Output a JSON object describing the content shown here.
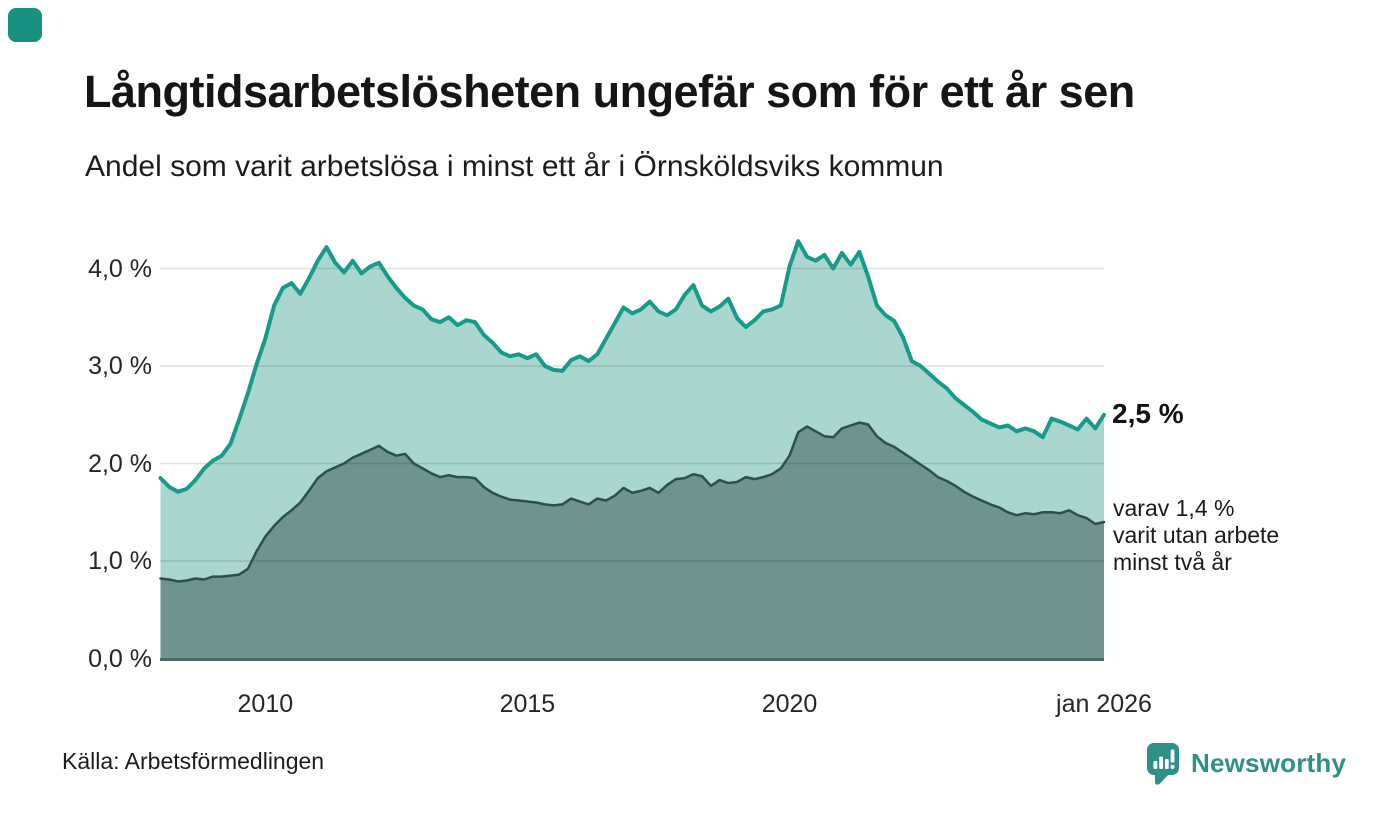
{
  "header": {
    "title": "Långtidsarbetslösheten ungefär som för ett år sen",
    "subtitle": "Andel som varit arbetslösa i minst ett år i Örnsköldsviks kommun"
  },
  "branding": {
    "corner_color": "#189181",
    "logo_text": "Newsworthy",
    "logo_color": "#2f9088"
  },
  "footer": {
    "source": "Källa: Arbetsförmedlingen"
  },
  "chart_data": {
    "type": "area",
    "title": "Långtidsarbetslösheten ungefär som för ett år sen",
    "subtitle": "Andel som varit arbetslösa i minst ett år i Örnsköldsviks kommun",
    "unit": "%",
    "x_start": "2008-01",
    "x_step_months": 2,
    "x_end": "2026-01",
    "grid": true,
    "ylim": [
      0,
      4.4
    ],
    "y_ticks": [
      {
        "label": "0,0 %",
        "value": 0
      },
      {
        "label": "1,0 %",
        "value": 1
      },
      {
        "label": "2,0 %",
        "value": 2
      },
      {
        "label": "3,0 %",
        "value": 3
      },
      {
        "label": "4,0 %",
        "value": 4
      }
    ],
    "x_ticks": [
      {
        "label": "2010",
        "index": 12
      },
      {
        "label": "2015",
        "index": 42
      },
      {
        "label": "2020",
        "index": 72
      },
      {
        "label": "jan 2026",
        "index": 108
      }
    ],
    "series": [
      {
        "name": "Andel arbetslösa minst ett år",
        "line_color": "#189a8b",
        "fill_color": "#a9d6cf",
        "line_width": 4,
        "values": [
          1.85,
          1.76,
          1.71,
          1.74,
          1.83,
          1.95,
          2.03,
          2.08,
          2.2,
          2.45,
          2.72,
          3.02,
          3.28,
          3.62,
          3.8,
          3.85,
          3.74,
          3.9,
          4.08,
          4.22,
          4.06,
          3.96,
          4.08,
          3.95,
          4.02,
          4.06,
          3.92,
          3.8,
          3.7,
          3.62,
          3.58,
          3.48,
          3.45,
          3.5,
          3.42,
          3.47,
          3.45,
          3.32,
          3.24,
          3.14,
          3.1,
          3.12,
          3.08,
          3.12,
          3.0,
          2.96,
          2.95,
          3.06,
          3.1,
          3.05,
          3.12,
          3.28,
          3.44,
          3.6,
          3.54,
          3.58,
          3.66,
          3.56,
          3.52,
          3.58,
          3.73,
          3.83,
          3.62,
          3.56,
          3.61,
          3.69,
          3.49,
          3.4,
          3.47,
          3.56,
          3.58,
          3.62,
          4.02,
          4.28,
          4.12,
          4.08,
          4.14,
          4.0,
          4.16,
          4.04,
          4.17,
          3.92,
          3.62,
          3.52,
          3.46,
          3.29,
          3.05,
          3.0,
          2.92,
          2.84,
          2.77,
          2.67,
          2.6,
          2.53,
          2.45,
          2.41,
          2.37,
          2.39,
          2.33,
          2.36,
          2.33,
          2.27,
          2.46,
          2.43,
          2.39,
          2.35,
          2.46,
          2.36,
          2.5
        ]
      },
      {
        "name": "Andel arbetslösa minst två år",
        "line_color": "#2e4f4a",
        "fill_color": "#6f938f",
        "line_width": 2.5,
        "values": [
          0.82,
          0.81,
          0.79,
          0.8,
          0.82,
          0.81,
          0.84,
          0.84,
          0.85,
          0.86,
          0.92,
          1.1,
          1.25,
          1.36,
          1.45,
          1.52,
          1.6,
          1.72,
          1.85,
          1.92,
          1.96,
          2.0,
          2.06,
          2.1,
          2.14,
          2.18,
          2.12,
          2.08,
          2.1,
          2.0,
          1.95,
          1.9,
          1.86,
          1.88,
          1.86,
          1.86,
          1.85,
          1.76,
          1.7,
          1.66,
          1.63,
          1.62,
          1.61,
          1.6,
          1.58,
          1.57,
          1.58,
          1.64,
          1.61,
          1.58,
          1.64,
          1.62,
          1.67,
          1.75,
          1.7,
          1.72,
          1.75,
          1.7,
          1.78,
          1.84,
          1.85,
          1.89,
          1.87,
          1.77,
          1.83,
          1.8,
          1.81,
          1.86,
          1.84,
          1.86,
          1.89,
          1.95,
          2.08,
          2.32,
          2.38,
          2.33,
          2.28,
          2.27,
          2.36,
          2.39,
          2.42,
          2.4,
          2.28,
          2.21,
          2.17,
          2.11,
          2.05,
          1.99,
          1.93,
          1.86,
          1.82,
          1.77,
          1.71,
          1.66,
          1.62,
          1.58,
          1.55,
          1.5,
          1.47,
          1.49,
          1.48,
          1.5,
          1.5,
          1.49,
          1.52,
          1.47,
          1.44,
          1.38,
          1.4
        ]
      }
    ],
    "annotations": {
      "end": {
        "text": "2,5 %",
        "value": 2.5
      },
      "note": {
        "lines": [
          "varav 1,4 %",
          "varit utan arbete",
          "minst två år"
        ],
        "value": 1.4
      }
    },
    "grid_color": "rgba(0,0,0,0.12)",
    "baseline_color": "#4a6a64",
    "legend_position": "none"
  }
}
